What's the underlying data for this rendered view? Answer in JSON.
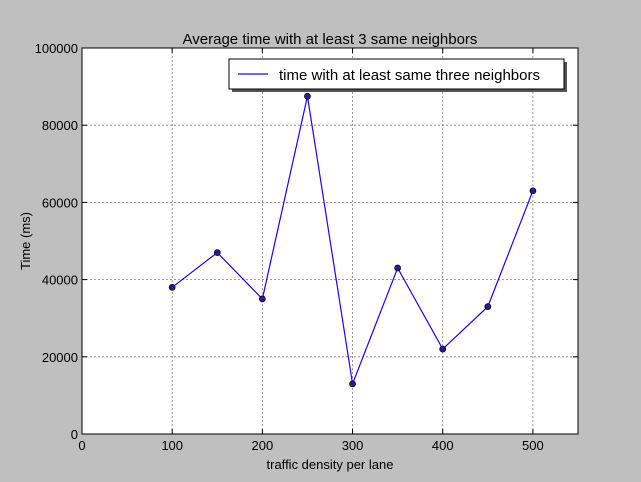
{
  "chart_data": {
    "type": "line",
    "title": "Average time with at least 3 same neighbors",
    "xlabel": "traffic density per lane",
    "ylabel": "Time (ms)",
    "xlim": [
      0,
      550
    ],
    "ylim": [
      0,
      100000
    ],
    "xticks": [
      0,
      100,
      200,
      300,
      400,
      500
    ],
    "yticks": [
      0,
      20000,
      40000,
      60000,
      80000,
      100000
    ],
    "grid": true,
    "legend_position": "top-right",
    "series": [
      {
        "name": "time with at least same three neighbors",
        "color": "#2200ff",
        "marker_color": "#2a1a9a",
        "x": [
          100,
          150,
          200,
          250,
          300,
          350,
          400,
          450,
          500
        ],
        "y": [
          38000,
          47000,
          35000,
          87500,
          13000,
          43000,
          22000,
          33000,
          63000
        ]
      }
    ]
  },
  "colors": {
    "figure_background": "#bfbfbf",
    "axes_background": "#ffffff",
    "grid": "#7f7f7f"
  }
}
